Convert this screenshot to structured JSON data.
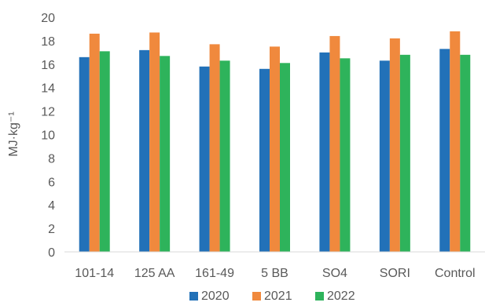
{
  "chart_data": {
    "type": "bar",
    "categories": [
      "101-14",
      "125 AA",
      "161-49",
      "5 BB",
      "SO4",
      "SORI",
      "Control"
    ],
    "series": [
      {
        "name": "2020",
        "color": "#2271B8",
        "values": [
          16.6,
          17.2,
          15.8,
          15.6,
          17.0,
          16.3,
          17.3
        ]
      },
      {
        "name": "2021",
        "color": "#F0893D",
        "values": [
          18.6,
          18.7,
          17.7,
          17.5,
          18.4,
          18.2,
          18.8
        ]
      },
      {
        "name": "2022",
        "color": "#2EB35B",
        "values": [
          17.1,
          16.7,
          16.3,
          16.1,
          16.5,
          16.8,
          16.8
        ]
      }
    ],
    "ylabel": "MJ·kg⁻¹",
    "ylim": [
      0,
      20
    ],
    "yticks": [
      0,
      2,
      4,
      6,
      8,
      10,
      12,
      14,
      16,
      18,
      20
    ],
    "grid": false,
    "legend": "bottom"
  }
}
